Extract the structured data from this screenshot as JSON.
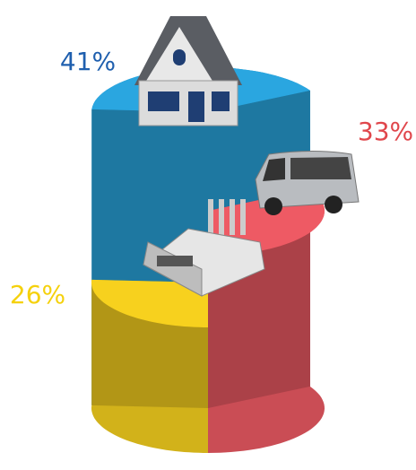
{
  "chart_data": {
    "type": "pie",
    "values": [
      41,
      33,
      26
    ],
    "value_labels": [
      "41%",
      "33%",
      "26%"
    ],
    "colors": [
      "#2aa6e0",
      "#ee5a64",
      "#f7d11e"
    ],
    "label_colors": [
      "#1f5fae",
      "#e0474c",
      "#f5d10c"
    ]
  }
}
